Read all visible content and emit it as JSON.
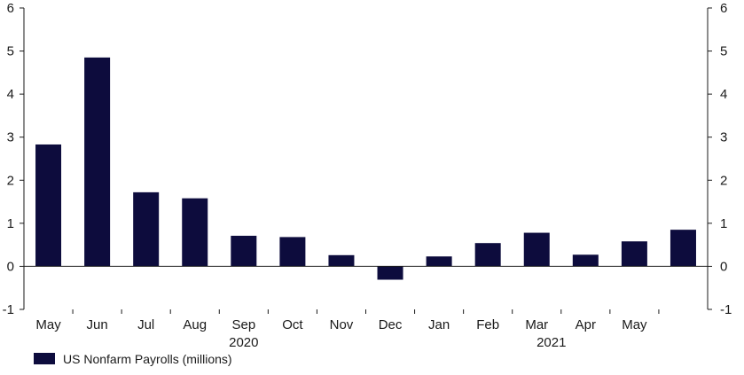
{
  "chart_data": {
    "type": "bar",
    "categories": [
      "May",
      "Jun",
      "Jul",
      "Aug",
      "Sep",
      "Oct",
      "Nov",
      "Dec",
      "Jan",
      "Feb",
      "Mar",
      "Apr",
      "May",
      ""
    ],
    "year_labels": [
      "2020",
      "2021"
    ],
    "series": [
      {
        "name": "US Nonfarm Payrolls (millions)",
        "color": "#0d0c3d",
        "values": [
          2.83,
          4.85,
          1.72,
          1.58,
          0.71,
          0.68,
          0.26,
          -0.31,
          0.23,
          0.54,
          0.78,
          0.27,
          0.58,
          0.85
        ]
      }
    ],
    "ylim": [
      -1,
      6
    ],
    "yticks": [
      -1,
      0,
      1,
      2,
      3,
      4,
      5,
      6
    ],
    "grid": false,
    "legend_position": "bottom-left",
    "title": "",
    "xlabel": "",
    "ylabel": ""
  }
}
